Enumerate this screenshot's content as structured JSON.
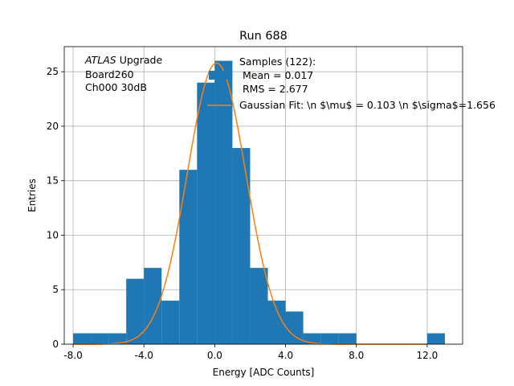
{
  "chart_data": {
    "type": "bar",
    "title": "Run 688",
    "xlabel": "Energy [ADC Counts]",
    "ylabel": "Entries",
    "xlim": [
      -8.5,
      14.0
    ],
    "ylim": [
      0,
      27.3
    ],
    "x_ticks": [
      -8.0,
      -4.0,
      0.0,
      4.0,
      8.0,
      12.0
    ],
    "x_tick_labels": [
      "-8.0",
      "-4.0",
      "0.0",
      "4.0",
      "8.0",
      "12.0"
    ],
    "y_ticks": [
      0,
      5,
      10,
      15,
      20,
      25
    ],
    "y_tick_labels": [
      "0",
      "5",
      "10",
      "15",
      "20",
      "25"
    ],
    "grid": true,
    "histogram": {
      "name": "Samples (122):\n Mean = 0.017\n RMS = 2.677",
      "color": "#1f77b4",
      "bin_edges": [
        -8,
        -7,
        -6,
        -5,
        -4,
        -3,
        -2,
        -1,
        0,
        1,
        2,
        3,
        4,
        5,
        6,
        7,
        8,
        9,
        10,
        11,
        12,
        13
      ],
      "counts": [
        1,
        1,
        1,
        6,
        7,
        4,
        16,
        24,
        26,
        18,
        7,
        4,
        3,
        1,
        1,
        1,
        0,
        0,
        0,
        0,
        1
      ]
    },
    "fit": {
      "name": "Gaussian Fit: \\n $\\mu$ = 0.103 \\n $\\sigma$=1.656",
      "color": "#ff7f0e",
      "mu": 0.103,
      "sigma": 1.656,
      "amplitude": 25.8,
      "x_range": [
        -8,
        12
      ]
    },
    "annotation": {
      "italic": "ATLAS",
      "text": " Upgrade\n Board260\n Ch000 30dB"
    },
    "legend_placement": "top-right"
  }
}
